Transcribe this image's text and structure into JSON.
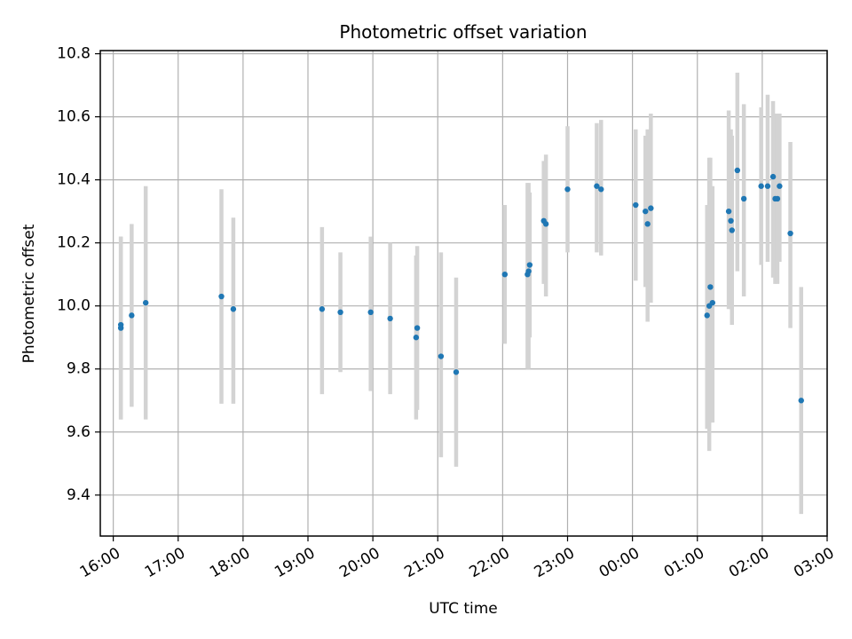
{
  "chart_data": {
    "type": "scatter",
    "title": "Photometric offset variation",
    "xlabel": "UTC time",
    "ylabel": "Photometric offset",
    "x_axis_kind": "time",
    "xlim": [
      "15:48",
      "03:00"
    ],
    "ylim": [
      9.27,
      10.81
    ],
    "grid": true,
    "legend": "none",
    "x_ticks": [
      "16:00",
      "17:00",
      "18:00",
      "19:00",
      "20:00",
      "21:00",
      "22:00",
      "23:00",
      "00:00",
      "01:00",
      "02:00",
      "03:00"
    ],
    "y_ticks": [
      "9.4",
      "9.6",
      "9.8",
      "10.0",
      "10.2",
      "10.4",
      "10.6",
      "10.8"
    ],
    "colors": {
      "points": "#1f77b4",
      "errorbars": "#d3d3d3",
      "grid": "#b0b0b0"
    },
    "series": [
      {
        "x": [
          "16:07",
          "16:07",
          "16:17",
          "16:30",
          "17:40",
          "17:51",
          "19:13",
          "19:30",
          "19:58",
          "20:16",
          "20:40",
          "20:41",
          "21:03",
          "21:17",
          "22:02",
          "22:23",
          "22:24",
          "22:25",
          "22:38",
          "22:40",
          "23:00",
          "23:27",
          "23:31",
          "00:03",
          "00:12",
          "00:14",
          "00:17",
          "01:09",
          "01:11",
          "01:12",
          "01:14",
          "01:29",
          "01:31",
          "01:32",
          "01:37",
          "01:43",
          "01:59",
          "02:05",
          "02:10",
          "02:12",
          "02:14",
          "02:16",
          "02:26"
        ],
        "y": [
          9.94,
          9.93,
          9.97,
          10.01,
          10.03,
          9.99,
          9.99,
          9.98,
          9.98,
          9.96,
          9.9,
          9.93,
          9.84,
          9.79,
          10.1,
          10.1,
          10.11,
          10.13,
          10.27,
          10.26,
          10.37,
          10.38,
          10.37,
          10.32,
          10.3,
          10.26,
          10.31,
          9.97,
          10.0,
          10.06,
          10.01,
          10.3,
          10.27,
          10.24,
          10.43,
          10.34,
          10.38,
          10.38,
          10.41,
          10.34,
          10.34,
          10.38,
          10.23
        ],
        "y_low": [
          9.64,
          9.64,
          9.68,
          9.64,
          9.69,
          9.69,
          9.72,
          9.79,
          9.73,
          9.72,
          9.64,
          9.67,
          9.52,
          9.49,
          9.88,
          9.8,
          9.8,
          9.9,
          10.07,
          10.03,
          10.17,
          10.17,
          10.16,
          10.08,
          10.06,
          9.95,
          10.01,
          9.61,
          9.54,
          9.63,
          9.63,
          9.99,
          9.99,
          9.94,
          10.11,
          10.03,
          10.13,
          10.14,
          10.09,
          10.07,
          10.07,
          10.14,
          9.93
        ],
        "y_high": [
          10.22,
          10.22,
          10.26,
          10.38,
          10.37,
          10.28,
          10.25,
          10.17,
          10.22,
          10.2,
          10.16,
          10.19,
          10.17,
          10.09,
          10.32,
          10.39,
          10.39,
          10.36,
          10.46,
          10.48,
          10.57,
          10.58,
          10.59,
          10.56,
          10.54,
          10.56,
          10.61,
          10.32,
          10.47,
          10.47,
          10.38,
          10.62,
          10.56,
          10.54,
          10.74,
          10.64,
          10.63,
          10.67,
          10.65,
          10.61,
          10.61,
          10.61,
          10.52
        ]
      },
      {
        "x": [
          "02:36"
        ],
        "y": [
          9.7
        ],
        "y_low": [
          9.34
        ],
        "y_high": [
          10.06
        ]
      }
    ]
  }
}
